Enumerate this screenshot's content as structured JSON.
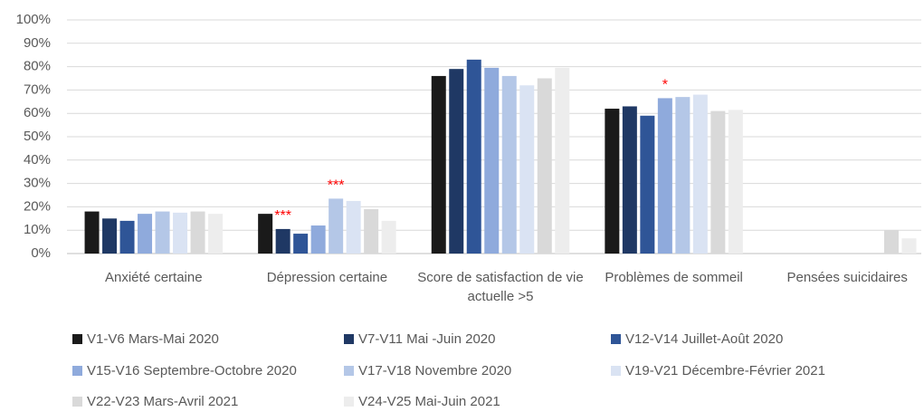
{
  "chart_data": {
    "type": "bar",
    "categories": [
      "Anxiété certaine",
      "Dépression certaine",
      "Score de satisfaction de vie actuelle >5",
      "Problèmes de sommeil",
      "Pensées suicidaires"
    ],
    "series": [
      {
        "name": "V1-V6 Mars-Mai 2020",
        "color": "#1a1a1a",
        "values": [
          18,
          17,
          76,
          62,
          null
        ]
      },
      {
        "name": "V7-V11 Mai -Juin 2020",
        "color": "#1f3864",
        "values": [
          15,
          10.5,
          79,
          63,
          null
        ]
      },
      {
        "name": "V12-V14 Juillet-Août 2020",
        "color": "#2f5597",
        "values": [
          14,
          8.5,
          83,
          59,
          null
        ]
      },
      {
        "name": "V15-V16 Septembre-Octobre 2020",
        "color": "#8faadc",
        "values": [
          17,
          12,
          79.5,
          66.5,
          null
        ]
      },
      {
        "name": "V17-V18 Novembre 2020",
        "color": "#b4c7e7",
        "values": [
          18,
          23.5,
          76,
          67,
          null
        ]
      },
      {
        "name": "V19-V21 Décembre-Février 2021",
        "color": "#dae3f3",
        "values": [
          17.5,
          22.5,
          72,
          68,
          null
        ]
      },
      {
        "name": "V22-V23 Mars-Avril 2021",
        "color": "#d9d9d9",
        "values": [
          18,
          19,
          75,
          61,
          10
        ]
      },
      {
        "name": "V24-V25 Mai-Juin 2021",
        "color": "#ededed",
        "values": [
          17,
          14,
          79.5,
          61.5,
          6.5
        ]
      }
    ],
    "annotations": [
      "***",
      "***",
      "*"
    ],
    "ylim": [
      0,
      100
    ],
    "yticks": [
      {
        "value": 0,
        "label": "0%"
      },
      {
        "value": 10,
        "label": "10%"
      },
      {
        "value": 20,
        "label": "20%"
      },
      {
        "value": 30,
        "label": "30%"
      },
      {
        "value": 40,
        "label": "40%"
      },
      {
        "value": 50,
        "label": "50%"
      },
      {
        "value": 60,
        "label": "60%"
      },
      {
        "value": 70,
        "label": "70%"
      },
      {
        "value": 80,
        "label": "80%"
      },
      {
        "value": 90,
        "label": "90%"
      },
      {
        "value": 100,
        "label": "100%"
      }
    ],
    "grid": true
  }
}
